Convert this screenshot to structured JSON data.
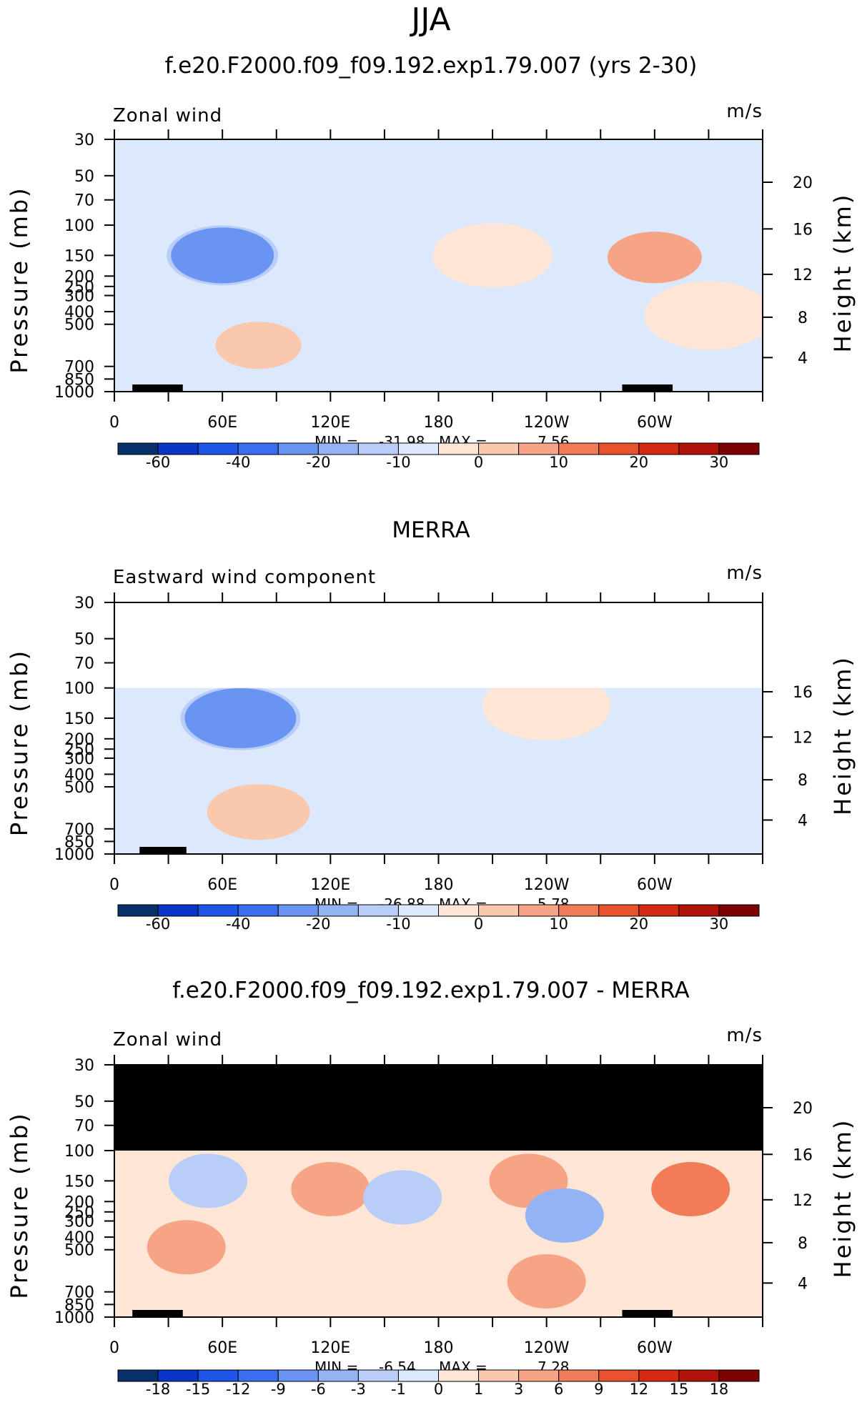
{
  "figure": {
    "title": "JJA"
  },
  "colors": {
    "default_11": [
      "#08306b",
      "#0b35c9",
      "#1d55e6",
      "#3a6ef0",
      "#6a94f2",
      "#94b3f5",
      "#b8cdf7",
      "#dce8fb",
      "#fde6d6",
      "#fac8ad",
      "#f7a386",
      "#f27c58",
      "#e8522d",
      "#d42a12",
      "#b01308",
      "#7d0303"
    ],
    "diff": [
      "#08306b",
      "#0b35c9",
      "#1d55e6",
      "#3a6ef0",
      "#6a94f2",
      "#94b3f5",
      "#b8cdf7",
      "#dce8fb",
      "#fde6d6",
      "#fac8ad",
      "#f7a386",
      "#f27c58",
      "#e8522d",
      "#d42a12",
      "#b01308",
      "#7d0303"
    ],
    "mask": "#000000"
  },
  "chart_data": [
    {
      "type": "heatmap",
      "title": "f.e20.F2000.f09_f09.192.exp1.79.007 (yrs 2-30)",
      "left_label": "Zonal wind",
      "units": "m/s",
      "ylabel": "Pressure (mb)",
      "ylabel_right": "Height (km)",
      "yticks": [
        "30",
        "50",
        "70",
        "100",
        "150",
        "200",
        "250",
        "300",
        "400",
        "500",
        "700",
        "850",
        "1000"
      ],
      "yticks_right": [
        "20",
        "16",
        "12",
        "8",
        "4"
      ],
      "xticks": [
        "0",
        "60E",
        "120E",
        "180",
        "120W",
        "60W"
      ],
      "xlim": [
        0,
        360
      ],
      "stats": {
        "min_label": "MIN =",
        "min": "-31.98",
        "max_label": "MAX =",
        "max": "7.56"
      },
      "colorbar": {
        "levels": [
          "-60",
          "-40",
          "-20",
          "-10",
          "0",
          "10",
          "20",
          "30"
        ]
      },
      "fields": {
        "base_level": 7,
        "blobs": [
          {
            "lon": 330,
            "p": 430,
            "level": 8
          },
          {
            "lon": 210,
            "p": 150,
            "level": 8
          },
          {
            "lon": 60,
            "p": 150,
            "level": 6
          },
          {
            "lon": 60,
            "p": 150,
            "level": 4
          },
          {
            "lon": 300,
            "p": 155,
            "level": 10
          },
          {
            "lon": 80,
            "p": 600,
            "level": 9
          }
        ]
      },
      "topography": [
        [
          10,
          30
        ],
        [
          28,
          38
        ],
        [
          282,
          310
        ]
      ],
      "top_mask": null
    },
    {
      "type": "heatmap",
      "title": "MERRA",
      "left_label": "Eastward wind component",
      "units": "m/s",
      "ylabel": "Pressure (mb)",
      "ylabel_right": "Height (km)",
      "yticks": [
        "30",
        "50",
        "70",
        "100",
        "150",
        "200",
        "250",
        "300",
        "400",
        "500",
        "700",
        "850",
        "1000"
      ],
      "yticks_right": [
        "16",
        "12",
        "8",
        "4"
      ],
      "xticks": [
        "0",
        "60E",
        "120E",
        "180",
        "120W",
        "60W"
      ],
      "xlim": [
        0,
        360
      ],
      "stats": {
        "min_label": "MIN =",
        "min": "-26.88",
        "max_label": "MAX =",
        "max": "5.78"
      },
      "colorbar": {
        "levels": [
          "-60",
          "-40",
          "-20",
          "-10",
          "0",
          "10",
          "20",
          "30"
        ]
      },
      "fields": {
        "base_level": 7,
        "blobs": [
          {
            "lon": 240,
            "p": 130,
            "level": 8
          },
          {
            "lon": 70,
            "p": 150,
            "level": 6
          },
          {
            "lon": 70,
            "p": 150,
            "level": 4
          },
          {
            "lon": 80,
            "p": 620,
            "level": 9
          }
        ]
      },
      "topography": [
        [
          14,
          40
        ]
      ],
      "top_mask": "blank_above_100"
    },
    {
      "type": "heatmap",
      "title": "f.e20.F2000.f09_f09.192.exp1.79.007 - MERRA",
      "left_label": "Zonal wind",
      "units": "m/s",
      "ylabel": "Pressure (mb)",
      "ylabel_right": "Height (km)",
      "yticks": [
        "30",
        "50",
        "70",
        "100",
        "150",
        "200",
        "250",
        "300",
        "400",
        "500",
        "700",
        "850",
        "1000"
      ],
      "yticks_right": [
        "20",
        "16",
        "12",
        "8",
        "4"
      ],
      "xticks": [
        "0",
        "60E",
        "120E",
        "180",
        "120W",
        "60W"
      ],
      "xlim": [
        0,
        360
      ],
      "stats": {
        "min_label": "MIN =",
        "min": "-6.54",
        "max_label": "MAX =",
        "max": "7.28"
      },
      "colorbar": {
        "levels": [
          "-18",
          "-15",
          "-12",
          "-9",
          "-6",
          "-3",
          "-1",
          "0",
          "1",
          "3",
          "6",
          "9",
          "12",
          "15",
          "18"
        ]
      },
      "fields": {
        "base_level": 8,
        "blobs": [
          {
            "lon": 52,
            "p": 150,
            "level": 6
          },
          {
            "lon": 120,
            "p": 170,
            "level": 10
          },
          {
            "lon": 230,
            "p": 150,
            "level": 10
          },
          {
            "lon": 160,
            "p": 190,
            "level": 6
          },
          {
            "lon": 250,
            "p": 270,
            "level": 5
          },
          {
            "lon": 320,
            "p": 170,
            "level": 11
          },
          {
            "lon": 40,
            "p": 480,
            "level": 10
          },
          {
            "lon": 240,
            "p": 650,
            "level": 10
          }
        ]
      },
      "topography": [
        [
          10,
          30
        ],
        [
          28,
          38
        ],
        [
          282,
          310
        ]
      ],
      "top_mask": "black_above_100"
    }
  ]
}
